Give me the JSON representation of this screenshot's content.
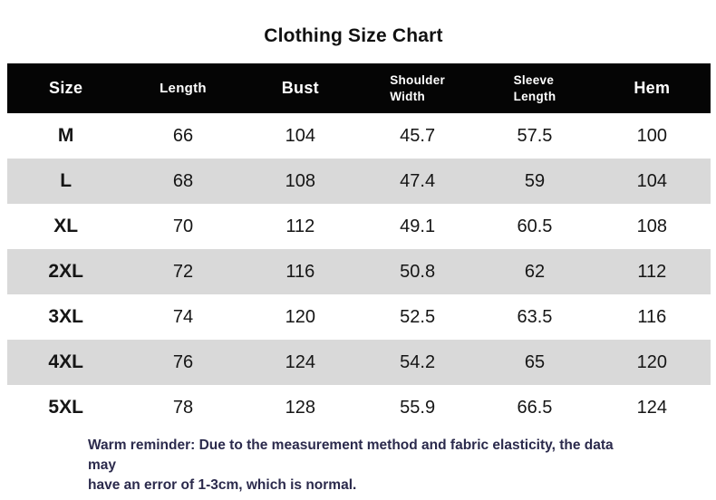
{
  "title": "Clothing Size Chart",
  "chart_data": {
    "type": "table",
    "title": "Clothing Size Chart",
    "columns": [
      "Size",
      "Length",
      "Bust",
      "Shoulder Width",
      "Sleeve Length",
      "Hem"
    ],
    "rows": [
      [
        "M",
        "66",
        "104",
        "45.7",
        "57.5",
        "100"
      ],
      [
        "L",
        "68",
        "108",
        "47.4",
        "59",
        "104"
      ],
      [
        "XL",
        "70",
        "112",
        "49.1",
        "60.5",
        "108"
      ],
      [
        "2XL",
        "72",
        "116",
        "50.8",
        "62",
        "112"
      ],
      [
        "3XL",
        "74",
        "120",
        "52.5",
        "63.5",
        "116"
      ],
      [
        "4XL",
        "76",
        "124",
        "54.2",
        "65",
        "120"
      ],
      [
        "5XL",
        "78",
        "128",
        "55.9",
        "66.5",
        "124"
      ]
    ]
  },
  "header": {
    "size": "Size",
    "length": "Length",
    "bust": "Bust",
    "shoulder_line1": "Shoulder",
    "shoulder_line2": "Width",
    "sleeve_line1": "Sleeve",
    "sleeve_line2": "Length",
    "hem": "Hem"
  },
  "footer": {
    "note_line1": "Warm reminder: Due to the measurement method and fabric elasticity, the data may",
    "note_line2": "have an error of 1-3cm, which is normal."
  },
  "colors": {
    "header_bg": "#050505",
    "header_text": "#ffffff",
    "row_alt_bg": "#d9d9d9",
    "body_text": "#151515",
    "note_text": "#2b2a4c"
  }
}
